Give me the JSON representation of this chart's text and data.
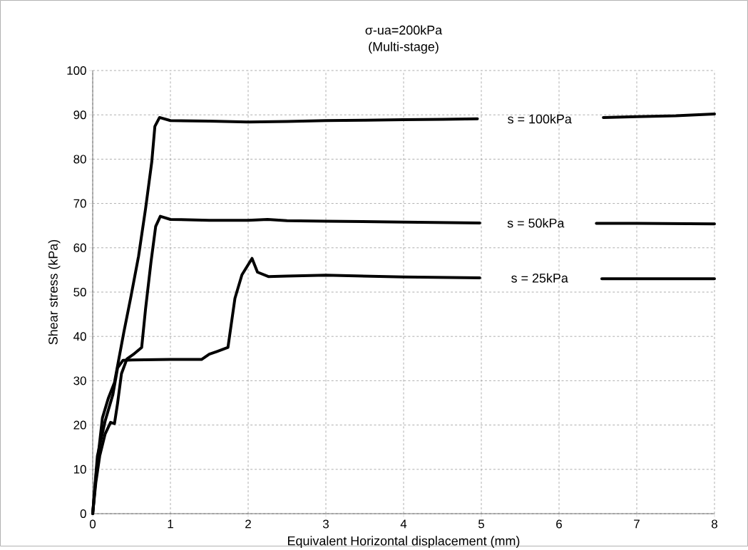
{
  "chart_data": {
    "type": "line",
    "title": "σ-ua=200kPa",
    "subtitle": "(Multi-stage)",
    "xlabel": "Equivalent Horizontal displacement (mm)",
    "ylabel": "Shear stress (kPa)",
    "xlim": [
      0,
      8
    ],
    "ylim": [
      0,
      100
    ],
    "xticks": [
      0,
      1,
      2,
      3,
      4,
      5,
      6,
      7,
      8
    ],
    "yticks": [
      0,
      10,
      20,
      30,
      40,
      50,
      60,
      70,
      80,
      90,
      100
    ],
    "grid": true,
    "marker": "none",
    "line_style": "solid",
    "series": [
      {
        "name": "s = 100kPa",
        "color": "#000000",
        "x": [
          0,
          0.05,
          0.125,
          0.2,
          0.28,
          0.4,
          0.49,
          0.59,
          0.68,
          0.76,
          0.8,
          0.86,
          1,
          1.5,
          2,
          2.5,
          3,
          3.5,
          4,
          4.5,
          4.95,
          5.75,
          6.57,
          7,
          7.5,
          8
        ],
        "values": [
          0,
          10,
          21.6,
          26,
          29.6,
          40.9,
          48.8,
          58.1,
          68.8,
          79.4,
          87.4,
          89.4,
          88.7,
          88.6,
          88.4,
          88.5,
          88.7,
          88.8,
          88.9,
          89,
          89.1,
          null,
          89.4,
          89.6,
          89.8,
          90.2
        ]
      },
      {
        "name": "s = 50kPa",
        "color": "#000000",
        "x": [
          0,
          0.04,
          0.09,
          0.16,
          0.23,
          0.28,
          0.32,
          0.37,
          0.44,
          0.52,
          0.63,
          0.68,
          0.75,
          0.81,
          0.87,
          1,
          1.5,
          2,
          2.25,
          2.5,
          3,
          4,
          4.98,
          5.7,
          6.48,
          7,
          8
        ],
        "values": [
          0,
          7,
          13,
          18,
          20.6,
          20.3,
          24.9,
          31.6,
          34.9,
          35.9,
          37.5,
          46.2,
          56.8,
          64.8,
          67.1,
          66.4,
          66.2,
          66.2,
          66.4,
          66.1,
          66,
          65.8,
          65.6,
          null,
          65.5,
          65.5,
          65.4
        ]
      },
      {
        "name": "s  = 25kPa",
        "color": "#000000",
        "x": [
          0,
          0.06,
          0.16,
          0.26,
          0.32,
          0.39,
          0.51,
          1,
          1.4,
          1.5,
          1.6,
          1.74,
          1.83,
          1.92,
          2.05,
          2.12,
          2.26,
          2.5,
          3,
          4,
          4.98,
          5.75,
          6.55,
          7,
          8
        ],
        "values": [
          0,
          13,
          20.9,
          26.9,
          32.9,
          34.6,
          34.7,
          34.8,
          34.8,
          36,
          36.6,
          37.5,
          48.6,
          53.9,
          57.6,
          54.5,
          53.5,
          53.6,
          53.8,
          53.4,
          53.2,
          null,
          53,
          53,
          53
        ]
      }
    ]
  }
}
